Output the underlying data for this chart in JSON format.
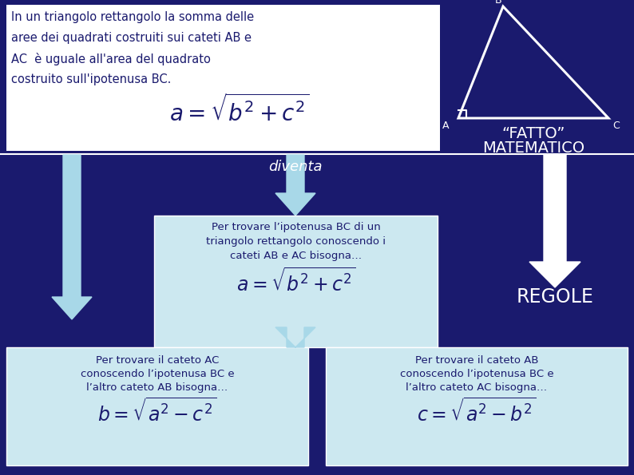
{
  "bg_color": "#1a1a6e",
  "top_box_color": "#ffffff",
  "light_box_color": "#cce8f0",
  "top_text_lines": [
    "In un triangolo rettangolo la somma delle",
    "aree dei quadrati costruiti sui cateti AB e",
    "AC  è uguale all'area del quadrato",
    "costruito sull'ipotenusa BC."
  ],
  "fatto_line1": "“FATTO”",
  "fatto_line2": "MATEMATICO",
  "diventa_text": "diventa",
  "regole_text": "REGOLE",
  "mid_box_text": [
    "Per trovare l’ipotenusa BC di un",
    "triangolo rettangolo conoscendo i",
    "cateti AB e AC bisogna…"
  ],
  "left_box_text": [
    "Per trovare il cateto AC",
    "conoscendo l’ipotenusa BC e",
    "l’altro cateto AB bisogna…"
  ],
  "right_box_text": [
    "Per trovare il cateto AB",
    "conoscendo l’ipotenusa BC e",
    "l’altro cateto AC bisogna…"
  ],
  "formula_top": "$a=\\sqrt{b^2+c^2}$",
  "formula_mid": "$a=\\sqrt{b^2+c^2}$",
  "formula_left": "$b=\\sqrt{a^2-c^2}$",
  "formula_right": "$c=\\sqrt{a^2-b^2}$",
  "arrow_color_light": "#a8d8e8",
  "arrow_color_white": "#ffffff",
  "text_color_white": "#ffffff",
  "text_color_dark": "#1a1a6e",
  "figw": 7.94,
  "figh": 5.95,
  "dpi": 100
}
